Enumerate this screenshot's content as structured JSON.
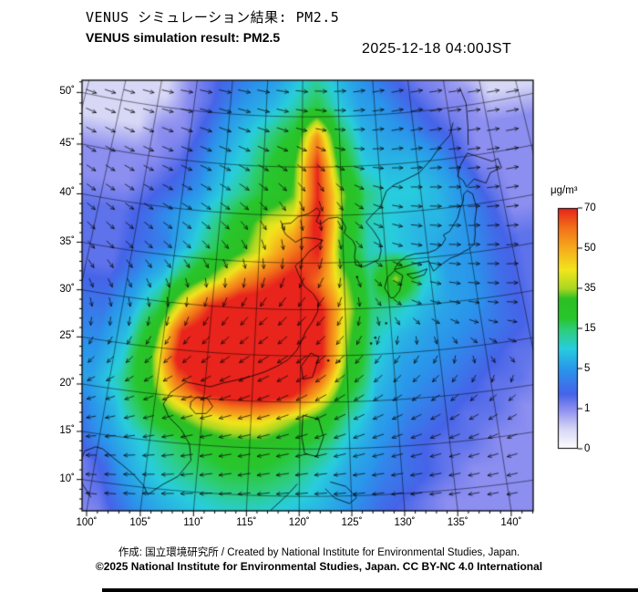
{
  "header": {
    "title_jp": "VENUS シミュレーション結果: PM2.5",
    "title_en": "VENUS simulation result: PM2.5",
    "datetime": "2025-12-18 04:00JST"
  },
  "colorbar": {
    "unit": "μg/m³",
    "tick_labels": [
      "70",
      "50",
      "35",
      "15",
      "5",
      "1",
      "0"
    ],
    "boundaries": [
      0,
      1,
      5,
      15,
      35,
      50,
      70
    ],
    "stops": [
      [
        0,
        255,
        255,
        255
      ],
      [
        0.5,
        215,
        215,
        246
      ],
      [
        1,
        140,
        142,
        240
      ],
      [
        2.5,
        70,
        100,
        232
      ],
      [
        5,
        42,
        150,
        235
      ],
      [
        10,
        40,
        205,
        222
      ],
      [
        15,
        46,
        205,
        118
      ],
      [
        20,
        40,
        198,
        45
      ],
      [
        30,
        44,
        192,
        36
      ],
      [
        35,
        170,
        215,
        34
      ],
      [
        42,
        242,
        230,
        28
      ],
      [
        50,
        246,
        172,
        28
      ],
      [
        60,
        242,
        115,
        26
      ],
      [
        70,
        232,
        36,
        28
      ]
    ]
  },
  "axes": {
    "lat_labels": [
      "50˚",
      "45˚",
      "40˚",
      "35˚",
      "30˚",
      "25˚",
      "20˚",
      "15˚",
      "10˚"
    ],
    "lat_values": [
      50,
      45,
      40,
      35,
      30,
      25,
      20,
      15,
      10
    ],
    "lon_labels": [
      "100˚",
      "105˚",
      "110˚",
      "115˚",
      "120˚",
      "125˚",
      "130˚",
      "135˚",
      "140˚"
    ],
    "lon_values": [
      100,
      105,
      110,
      115,
      120,
      125,
      130,
      135,
      140
    ]
  },
  "map": {
    "pm25_grid": {
      "lon_start": 98,
      "lon_step": 3,
      "lat_start": 54,
      "lat_step": -3,
      "values": [
        [
          0.5,
          0.5,
          1,
          2,
          3,
          4,
          5,
          8,
          12,
          8,
          5,
          3,
          2,
          1,
          1,
          0.5,
          0.5
        ],
        [
          0.5,
          0.5,
          1,
          2,
          4,
          6,
          8,
          12,
          18,
          10,
          6,
          5,
          3,
          2,
          1,
          1,
          0.5
        ],
        [
          0.5,
          1,
          1,
          3,
          6,
          10,
          15,
          22,
          55,
          18,
          8,
          6,
          5,
          3,
          2,
          1,
          1
        ],
        [
          1,
          1,
          2,
          4,
          8,
          12,
          20,
          30,
          70,
          25,
          10,
          8,
          8,
          6,
          3,
          1,
          1
        ],
        [
          1,
          2,
          3,
          5,
          10,
          15,
          22,
          32,
          70,
          35,
          15,
          10,
          10,
          8,
          5,
          2,
          1
        ],
        [
          2,
          3,
          5,
          8,
          15,
          25,
          40,
          45,
          75,
          30,
          12,
          10,
          8,
          8,
          5,
          3,
          1
        ],
        [
          2,
          3,
          4,
          10,
          18,
          30,
          45,
          60,
          70,
          25,
          12,
          10,
          8,
          6,
          5,
          3,
          2
        ],
        [
          2,
          4,
          8,
          20,
          35,
          55,
          65,
          75,
          60,
          35,
          15,
          35,
          12,
          6,
          5,
          3,
          2
        ],
        [
          3,
          6,
          15,
          45,
          70,
          80,
          80,
          80,
          75,
          40,
          15,
          12,
          8,
          6,
          5,
          3,
          2
        ],
        [
          4,
          8,
          25,
          70,
          80,
          80,
          80,
          80,
          75,
          35,
          12,
          8,
          6,
          5,
          4,
          3,
          2
        ],
        [
          5,
          10,
          30,
          75,
          80,
          80,
          80,
          80,
          75,
          30,
          10,
          6,
          5,
          4,
          3,
          2,
          2
        ],
        [
          6,
          12,
          25,
          55,
          75,
          80,
          80,
          75,
          50,
          20,
          8,
          5,
          4,
          3,
          2,
          2,
          1
        ],
        [
          4,
          8,
          18,
          30,
          40,
          45,
          45,
          35,
          25,
          12,
          6,
          4,
          3,
          2,
          2,
          1,
          1
        ],
        [
          3,
          6,
          10,
          15,
          20,
          25,
          25,
          20,
          15,
          8,
          5,
          3,
          2,
          2,
          1,
          1,
          1
        ],
        [
          1,
          3,
          8,
          12,
          15,
          18,
          18,
          15,
          10,
          6,
          4,
          3,
          2,
          1,
          1,
          1,
          1
        ],
        [
          1,
          2,
          5,
          8,
          10,
          12,
          12,
          10,
          8,
          5,
          3,
          2,
          1,
          1,
          1,
          1,
          1
        ],
        [
          1,
          1,
          3,
          5,
          8,
          8,
          8,
          8,
          6,
          4,
          2,
          2,
          1,
          1,
          1,
          1,
          1
        ]
      ]
    },
    "wind": {
      "lon_start": 98,
      "lon_step": 6,
      "lat_start": 54,
      "lat_step": -6,
      "u": [
        [
          0.9,
          1,
          1,
          1,
          1,
          0.9,
          0.9,
          1,
          1
        ],
        [
          0.8,
          0.9,
          1,
          0.9,
          0.7,
          0.8,
          0.9,
          1,
          1
        ],
        [
          0.7,
          0.8,
          0.8,
          0.6,
          0.3,
          0.6,
          0.8,
          0.9,
          1
        ],
        [
          0.6,
          0.6,
          0.5,
          0.2,
          -0.2,
          0.5,
          0.8,
          0.9,
          0.9
        ],
        [
          0.3,
          0.2,
          -0.2,
          -0.5,
          -0.6,
          0.2,
          0.7,
          0.8,
          0.8
        ],
        [
          -0.2,
          -0.4,
          -0.6,
          -0.8,
          -0.8,
          -0.5,
          -0.3,
          0.2,
          0.4
        ],
        [
          -0.5,
          -0.7,
          -0.9,
          -1,
          -0.9,
          -0.8,
          -0.7,
          -0.6,
          -0.5
        ],
        [
          -0.7,
          -0.9,
          -1,
          -1,
          -1,
          -0.9,
          -0.9,
          -0.8,
          -0.7
        ],
        [
          -0.8,
          -0.9,
          -1,
          -1,
          -0.9,
          -0.9,
          -0.8,
          -0.8,
          -0.7
        ]
      ],
      "v": [
        [
          0,
          0,
          -0.1,
          -0.1,
          0,
          0.1,
          0.1,
          0,
          0
        ],
        [
          -0.2,
          -0.2,
          -0.3,
          -0.3,
          -0.2,
          0,
          0.1,
          0,
          0
        ],
        [
          -0.3,
          -0.3,
          -0.4,
          -0.5,
          -0.7,
          -0.3,
          -0.1,
          -0.1,
          0
        ],
        [
          -0.4,
          -0.4,
          -0.5,
          -0.7,
          -0.8,
          -0.4,
          -0.2,
          -0.1,
          -0.1
        ],
        [
          -0.5,
          -0.6,
          -0.6,
          -0.6,
          -0.7,
          -0.5,
          -0.3,
          -0.2,
          -0.1
        ],
        [
          -0.4,
          -0.5,
          -0.5,
          -0.5,
          -0.6,
          -0.5,
          -0.4,
          -0.3,
          -0.2
        ],
        [
          -0.2,
          -0.3,
          -0.3,
          -0.3,
          -0.4,
          -0.3,
          -0.3,
          -0.3,
          -0.2
        ],
        [
          -0.1,
          -0.1,
          -0.2,
          -0.2,
          -0.1,
          -0.1,
          -0.1,
          -0.1,
          -0.1
        ],
        [
          0,
          0,
          0,
          0,
          0,
          0,
          0,
          0,
          0
        ]
      ]
    },
    "coastlines": [
      [
        [
          100.2,
          8.3
        ],
        [
          99.2,
          9.5
        ],
        [
          98.5,
          11
        ],
        [
          98.8,
          13
        ],
        [
          99.8,
          13.6
        ],
        [
          100.5,
          13.5
        ],
        [
          101.7,
          12.7
        ],
        [
          102.5,
          12.2
        ],
        [
          103.8,
          11.3
        ],
        [
          105,
          10.2
        ],
        [
          105.5,
          9.3
        ],
        [
          106.8,
          10.5
        ],
        [
          108.2,
          11.5
        ],
        [
          109.3,
          13.3
        ],
        [
          109,
          15
        ],
        [
          108,
          16.5
        ],
        [
          106.6,
          17.7
        ],
        [
          105.9,
          19
        ],
        [
          106.5,
          20.3
        ],
        [
          108,
          21.6
        ],
        [
          109.7,
          21.4
        ],
        [
          110.6,
          21.3
        ],
        [
          111.9,
          21.8
        ],
        [
          113.3,
          22.2
        ],
        [
          114.6,
          22.6
        ],
        [
          116.2,
          23.2
        ],
        [
          117.6,
          23.9
        ],
        [
          118.7,
          24.6
        ],
        [
          119.6,
          25.6
        ],
        [
          120.1,
          26.6
        ],
        [
          120.6,
          27.7
        ],
        [
          121.3,
          28.7
        ],
        [
          121.9,
          29.8
        ],
        [
          122,
          30.8
        ],
        [
          121.4,
          31.7
        ],
        [
          120.4,
          32.5
        ],
        [
          119.7,
          33.8
        ],
        [
          119.3,
          34.7
        ],
        [
          120.3,
          35.5
        ],
        [
          120.9,
          36.2
        ],
        [
          122,
          36.9
        ],
        [
          122.6,
          37.4
        ],
        [
          121.7,
          37.6
        ],
        [
          120.3,
          37.7
        ],
        [
          119.3,
          37.2
        ],
        [
          118.1,
          38
        ],
        [
          117.7,
          38.6
        ],
        [
          117.6,
          39.1
        ],
        [
          118.7,
          39.2
        ],
        [
          119.6,
          39.9
        ],
        [
          120.9,
          40.2
        ],
        [
          121.9,
          40.8
        ],
        [
          122.3,
          40.4
        ],
        [
          121.8,
          39.4
        ],
        [
          122.3,
          39.1
        ],
        [
          123.3,
          39.7
        ],
        [
          124.4,
          39.8
        ],
        [
          124.9,
          39.6
        ],
        [
          125.4,
          38.7
        ],
        [
          125.2,
          38.1
        ],
        [
          126.2,
          37.3
        ],
        [
          126.5,
          36.6
        ],
        [
          126.3,
          35.6
        ],
        [
          126.4,
          34.7
        ],
        [
          127.4,
          34.5
        ],
        [
          128.4,
          34.9
        ],
        [
          129.2,
          35.2
        ],
        [
          129.5,
          36.1
        ],
        [
          129.4,
          37.2
        ],
        [
          128.7,
          38.3
        ],
        [
          127.9,
          39.2
        ],
        [
          128.7,
          39.9
        ],
        [
          129.8,
          40.7
        ],
        [
          130.7,
          42.3
        ],
        [
          131.8,
          42.9
        ],
        [
          133.2,
          43.3
        ],
        [
          135.1,
          43.9
        ],
        [
          136.8,
          45.1
        ],
        [
          138.3,
          46.4
        ],
        [
          139.7,
          47.3
        ],
        [
          140.4,
          48.5
        ]
      ],
      [
        [
          108.7,
          19.5
        ],
        [
          109.3,
          20.1
        ],
        [
          110.4,
          20
        ],
        [
          111,
          19.2
        ],
        [
          110.4,
          18.4
        ],
        [
          109.3,
          18.3
        ],
        [
          108.7,
          18.9
        ],
        [
          108.7,
          19.5
        ]
      ],
      [
        [
          121.1,
          25.3
        ],
        [
          122,
          24.9
        ],
        [
          121.3,
          22.7
        ],
        [
          120.3,
          22.5
        ],
        [
          120.1,
          23.9
        ],
        [
          121.1,
          25.3
        ]
      ],
      [
        [
          130.2,
          31
        ],
        [
          129.6,
          32.1
        ],
        [
          130,
          33.2
        ],
        [
          130.9,
          33.9
        ],
        [
          131.8,
          33.3
        ],
        [
          131.3,
          31.7
        ],
        [
          130.6,
          31
        ],
        [
          130.2,
          31
        ]
      ],
      [
        [
          132.3,
          33.4
        ],
        [
          133.6,
          33.5
        ],
        [
          134.7,
          33.8
        ],
        [
          134.3,
          33.2
        ],
        [
          132.9,
          32.9
        ],
        [
          132.3,
          33.4
        ]
      ],
      [
        [
          130.9,
          34
        ],
        [
          132,
          34.2
        ],
        [
          133.5,
          34.5
        ],
        [
          135,
          34.6
        ],
        [
          135.4,
          33.5
        ],
        [
          136.6,
          34.2
        ],
        [
          137.6,
          34.7
        ],
        [
          138.6,
          34.9
        ],
        [
          139.2,
          35.2
        ],
        [
          139.9,
          35.4
        ],
        [
          140.6,
          35.9
        ],
        [
          140.9,
          36.9
        ],
        [
          141.1,
          38.2
        ],
        [
          141.6,
          39.6
        ],
        [
          141.4,
          41.1
        ],
        [
          140.8,
          41.5
        ],
        [
          140.3,
          41.2
        ],
        [
          140.1,
          40.5
        ],
        [
          139.6,
          39.8
        ],
        [
          139.1,
          38.8
        ],
        [
          137.9,
          37.5
        ],
        [
          137.1,
          37.2
        ],
        [
          137.3,
          36.8
        ],
        [
          136.8,
          36.2
        ],
        [
          135.9,
          35.7
        ],
        [
          135,
          35.5
        ],
        [
          133.4,
          35.5
        ],
        [
          132.4,
          35.3
        ],
        [
          131.4,
          34.7
        ],
        [
          130.9,
          34
        ]
      ],
      [
        [
          140.5,
          42.6
        ],
        [
          139.9,
          43.1
        ],
        [
          140.4,
          44.1
        ],
        [
          141.6,
          45.3
        ],
        [
          142.9,
          44.8
        ],
        [
          144.6,
          44.1
        ],
        [
          145.4,
          44.3
        ],
        [
          145.6,
          43.3
        ],
        [
          144.1,
          43
        ],
        [
          143.3,
          42
        ],
        [
          141.9,
          42.6
        ],
        [
          140.8,
          41.9
        ],
        [
          140.5,
          42.6
        ]
      ],
      [
        [
          141.9,
          46.1
        ],
        [
          142.3,
          48
        ],
        [
          142.6,
          50.2
        ],
        [
          142.1,
          51.8
        ]
      ],
      [
        [
          120.3,
          18.6
        ],
        [
          121.9,
          18.2
        ],
        [
          122.4,
          16.3
        ],
        [
          121.7,
          14.2
        ],
        [
          120.5,
          14.5
        ],
        [
          120.2,
          16.3
        ],
        [
          120.3,
          18.6
        ]
      ],
      [
        [
          123,
          11.5
        ],
        [
          124.5,
          11
        ],
        [
          125.5,
          9.8
        ],
        [
          124.8,
          9.2
        ],
        [
          123.4,
          9.8
        ],
        [
          122.5,
          10.8
        ]
      ],
      [
        [
          117.3,
          8.5
        ],
        [
          119,
          10.3
        ],
        [
          119.8,
          11.3
        ]
      ]
    ],
    "islands": [
      [
        129.5,
        28.3
      ],
      [
        128.2,
        26.8
      ],
      [
        127.7,
        26.2
      ],
      [
        126.5,
        33.4
      ],
      [
        124.2,
        24.4
      ],
      [
        123,
        24.5
      ]
    ]
  },
  "attribution": {
    "line1": "作成: 国立環境研究所 / Created by National Institute for Environmental Studies, Japan.",
    "line2": "©2025 National Institute for Environmental Studies, Japan. CC BY-NC 4.0 International"
  }
}
